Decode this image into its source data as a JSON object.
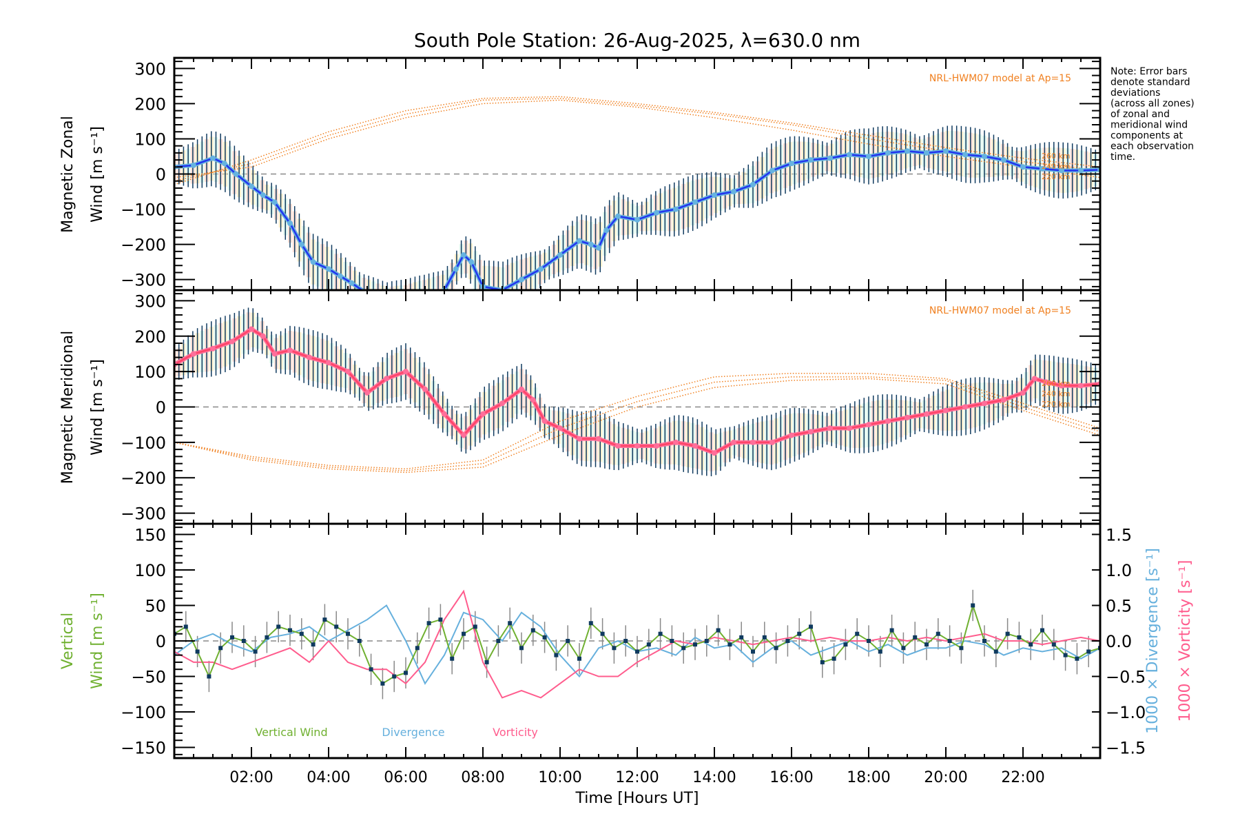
{
  "chart_data": [
    {
      "type": "line",
      "panel": "zonal",
      "title": "South Pole Station: 26-Aug-2025, λ=630.0 nm",
      "ylabel_line1": "Magnetic Zonal",
      "ylabel_line2": "Wind [m s⁻¹]",
      "ylim": [
        -330,
        330
      ],
      "yticks": [
        300,
        200,
        100,
        0,
        -100,
        -200,
        -300
      ],
      "model_label": "NRL-HWM07 model at Ap=15",
      "model_altitudes": [
        "260 km",
        "240 km",
        "220 km"
      ],
      "series": [
        {
          "name": "Magnetic Zonal Wind (mean)",
          "x": [
            0.0,
            0.5,
            1.0,
            1.3,
            1.6,
            2.0,
            2.3,
            2.6,
            3.0,
            3.3,
            3.6,
            4.0,
            4.3,
            4.6,
            5.0,
            5.5,
            6.0,
            6.5,
            7.0,
            7.3,
            7.5,
            7.7,
            8.0,
            8.5,
            9.0,
            9.5,
            10.0,
            10.5,
            10.8,
            11.0,
            11.2,
            11.5,
            12.0,
            12.5,
            13.0,
            13.5,
            14.0,
            14.5,
            15.0,
            15.5,
            16.0,
            16.5,
            17.0,
            17.5,
            18.0,
            18.5,
            19.0,
            19.5,
            20.0,
            20.5,
            21.0,
            21.5,
            22.0,
            22.5,
            23.0,
            23.5,
            24.0
          ],
          "y": [
            20,
            25,
            45,
            30,
            0,
            -35,
            -60,
            -80,
            -140,
            -200,
            -250,
            -270,
            -290,
            -310,
            -340,
            -380,
            -380,
            -360,
            -330,
            -270,
            -230,
            -250,
            -320,
            -330,
            -300,
            -270,
            -230,
            -190,
            -200,
            -210,
            -160,
            -120,
            -130,
            -110,
            -100,
            -80,
            -60,
            -50,
            -30,
            10,
            30,
            40,
            45,
            55,
            50,
            60,
            65,
            60,
            65,
            55,
            50,
            40,
            20,
            15,
            10,
            10,
            12
          ]
        },
        {
          "name": "NRL-HWM07 260 km",
          "x": [
            0,
            2,
            4,
            6,
            8,
            10,
            12,
            14,
            16,
            18,
            20,
            22,
            24
          ],
          "y": [
            -30,
            40,
            120,
            180,
            215,
            220,
            200,
            175,
            145,
            110,
            75,
            45,
            20
          ]
        },
        {
          "name": "NRL-HWM07 240 km",
          "x": [
            0,
            2,
            4,
            6,
            8,
            10,
            12,
            14,
            16,
            18,
            20,
            22,
            24
          ],
          "y": [
            -20,
            30,
            110,
            170,
            210,
            215,
            195,
            170,
            140,
            100,
            65,
            35,
            10
          ]
        },
        {
          "name": "NRL-HWM07 220 km",
          "x": [
            0,
            2,
            4,
            6,
            8,
            10,
            12,
            14,
            16,
            18,
            20,
            22,
            24
          ],
          "y": [
            -10,
            20,
            100,
            160,
            200,
            210,
            190,
            160,
            125,
            85,
            50,
            20,
            -10
          ]
        }
      ]
    },
    {
      "type": "line",
      "panel": "meridional",
      "ylabel_line1": "Magnetic Meridional",
      "ylabel_line2": "Wind [m s⁻¹]",
      "ylim": [
        -330,
        330
      ],
      "yticks": [
        300,
        200,
        100,
        0,
        -100,
        -200,
        -300
      ],
      "model_label": "NRL-HWM07 model at Ap=15",
      "model_altitudes": [
        "260 km",
        "240 km",
        "220 km"
      ],
      "series": [
        {
          "name": "Magnetic Meridional Wind (mean)",
          "x": [
            0.0,
            0.5,
            1.0,
            1.5,
            2.0,
            2.3,
            2.6,
            3.0,
            3.5,
            4.0,
            4.5,
            5.0,
            5.5,
            6.0,
            6.5,
            7.0,
            7.5,
            8.0,
            8.5,
            9.0,
            9.3,
            9.6,
            10.0,
            10.5,
            11.0,
            11.5,
            12.0,
            12.5,
            13.0,
            13.5,
            14.0,
            14.5,
            15.0,
            15.5,
            16.0,
            16.5,
            17.0,
            17.5,
            18.0,
            18.5,
            19.0,
            19.5,
            20.0,
            20.5,
            21.0,
            21.5,
            22.0,
            22.3,
            22.6,
            23.0,
            23.5,
            24.0
          ],
          "y": [
            120,
            150,
            165,
            185,
            220,
            200,
            150,
            160,
            140,
            125,
            100,
            40,
            80,
            100,
            50,
            -20,
            -80,
            -20,
            10,
            50,
            20,
            -40,
            -60,
            -90,
            -90,
            -110,
            -110,
            -110,
            -100,
            -110,
            -130,
            -100,
            -100,
            -100,
            -80,
            -70,
            -60,
            -60,
            -50,
            -40,
            -30,
            -20,
            -10,
            0,
            10,
            20,
            40,
            80,
            70,
            60,
            60,
            65
          ]
        },
        {
          "name": "NRL-HWM07 260 km",
          "x": [
            0,
            2,
            4,
            6,
            8,
            10,
            12,
            14,
            16,
            18,
            20,
            22,
            24
          ],
          "y": [
            -100,
            -140,
            -165,
            -175,
            -150,
            -40,
            30,
            85,
            95,
            95,
            80,
            10,
            -60
          ]
        },
        {
          "name": "NRL-HWM07 240 km",
          "x": [
            0,
            2,
            4,
            6,
            8,
            10,
            12,
            14,
            16,
            18,
            20,
            22,
            24
          ],
          "y": [
            -100,
            -145,
            -170,
            -180,
            -160,
            -60,
            15,
            70,
            85,
            85,
            75,
            0,
            -70
          ]
        },
        {
          "name": "NRL-HWM07 220 km",
          "x": [
            0,
            2,
            4,
            6,
            8,
            10,
            12,
            14,
            16,
            18,
            20,
            22,
            24
          ],
          "y": [
            -100,
            -150,
            -175,
            -185,
            -170,
            -80,
            0,
            55,
            75,
            80,
            65,
            -10,
            -80
          ]
        }
      ]
    },
    {
      "type": "line",
      "panel": "vertical",
      "ylabel_line1": "Vertical",
      "ylabel_line2": "Wind [m s⁻¹]",
      "ylim": [
        -165,
        165
      ],
      "yticks": [
        150,
        100,
        50,
        0,
        -50,
        -100,
        -150
      ],
      "y2label_div": "1000 × Divergence [s⁻¹]",
      "y2label_vor": "1000 × Vorticity [s⁻¹]",
      "y2lim": [
        -1.65,
        1.65
      ],
      "y2ticks": [
        "1.5",
        "1.0",
        "0.5",
        "0.0",
        "−0.5",
        "−1.0",
        "−1.5"
      ],
      "legend": [
        "Vertical Wind",
        "Divergence",
        "Vorticity"
      ],
      "xlabel": "Time [Hours UT]",
      "xticks": [
        "02:00",
        "04:00",
        "06:00",
        "08:00",
        "10:00",
        "12:00",
        "14:00",
        "16:00",
        "18:00",
        "20:00",
        "22:00"
      ],
      "xlim": [
        0,
        24
      ],
      "series": [
        {
          "name": "Vertical Wind",
          "x": [
            0,
            0.3,
            0.6,
            0.9,
            1.2,
            1.5,
            1.8,
            2.1,
            2.4,
            2.7,
            3.0,
            3.3,
            3.6,
            3.9,
            4.2,
            4.5,
            4.8,
            5.1,
            5.4,
            5.7,
            6.0,
            6.3,
            6.6,
            6.9,
            7.2,
            7.5,
            7.8,
            8.1,
            8.4,
            8.7,
            9.0,
            9.3,
            9.6,
            9.9,
            10.2,
            10.5,
            10.8,
            11.1,
            11.4,
            11.7,
            12.0,
            12.3,
            12.6,
            12.9,
            13.2,
            13.5,
            13.8,
            14.1,
            14.4,
            14.7,
            15.0,
            15.3,
            15.6,
            15.9,
            16.2,
            16.5,
            16.8,
            17.1,
            17.4,
            17.7,
            18.0,
            18.3,
            18.6,
            18.9,
            19.2,
            19.5,
            19.8,
            20.1,
            20.4,
            20.7,
            21.0,
            21.3,
            21.6,
            21.9,
            22.2,
            22.5,
            22.8,
            23.1,
            23.4,
            23.7,
            24
          ],
          "y": [
            10,
            20,
            -15,
            -50,
            -10,
            5,
            0,
            -15,
            5,
            20,
            15,
            10,
            -5,
            30,
            20,
            10,
            0,
            -40,
            -60,
            -50,
            -45,
            -10,
            25,
            30,
            -25,
            10,
            20,
            -30,
            0,
            25,
            -10,
            15,
            5,
            -20,
            0,
            -25,
            25,
            10,
            -10,
            0,
            -15,
            -5,
            10,
            0,
            -10,
            -5,
            0,
            15,
            -5,
            5,
            -15,
            5,
            -10,
            0,
            10,
            20,
            -30,
            -25,
            -5,
            10,
            0,
            -15,
            15,
            -10,
            5,
            -5,
            10,
            0,
            -10,
            50,
            0,
            -15,
            10,
            5,
            -5,
            15,
            -5,
            -20,
            -25,
            -15,
            -10
          ]
        },
        {
          "name": "Divergence (x1000, s^-1)",
          "x": [
            0,
            0.5,
            1.0,
            1.5,
            2.0,
            2.5,
            3.0,
            3.5,
            4.0,
            4.5,
            5.0,
            5.5,
            6.0,
            6.5,
            7.0,
            7.5,
            8.0,
            8.5,
            9.0,
            9.5,
            10.0,
            10.5,
            11.0,
            11.5,
            12.0,
            12.5,
            13.0,
            13.5,
            14.0,
            14.5,
            15.0,
            15.5,
            16.0,
            16.5,
            17.0,
            17.5,
            18.0,
            18.5,
            19.0,
            19.5,
            20.0,
            20.5,
            21.0,
            21.5,
            22.0,
            22.5,
            23.0,
            23.5,
            24
          ],
          "y": [
            -0.2,
            0.0,
            0.1,
            -0.05,
            -0.15,
            0.05,
            0.1,
            0.2,
            0.0,
            0.15,
            0.3,
            0.5,
            0.0,
            -0.6,
            -0.2,
            0.4,
            0.3,
            0.0,
            0.4,
            0.2,
            -0.2,
            -0.5,
            -0.1,
            0.0,
            -0.15,
            -0.1,
            -0.2,
            0.05,
            -0.1,
            -0.05,
            -0.3,
            -0.1,
            0.0,
            -0.2,
            -0.1,
            0.0,
            -0.15,
            -0.05,
            -0.2,
            -0.1,
            -0.1,
            0.0,
            -0.05,
            -0.2,
            -0.1,
            -0.15,
            -0.1,
            -0.25,
            -0.1
          ]
        },
        {
          "name": "Vorticity (x1000, s^-1)",
          "x": [
            0,
            0.5,
            1.0,
            1.5,
            2.0,
            2.5,
            3.0,
            3.5,
            4.0,
            4.5,
            5.0,
            5.5,
            6.0,
            6.5,
            7.0,
            7.5,
            8.0,
            8.5,
            9.0,
            9.5,
            10.0,
            10.5,
            11.0,
            11.5,
            12.0,
            12.5,
            13.0,
            13.5,
            14.0,
            14.5,
            15.0,
            15.5,
            16.0,
            16.5,
            17.0,
            17.5,
            18.0,
            18.5,
            19.0,
            19.5,
            20.0,
            20.5,
            21.0,
            21.5,
            22.0,
            22.5,
            23.0,
            23.5,
            24
          ],
          "y": [
            -0.15,
            -0.3,
            -0.3,
            -0.4,
            -0.3,
            -0.2,
            -0.1,
            -0.3,
            0.0,
            -0.3,
            -0.4,
            -0.4,
            -0.6,
            -0.3,
            0.3,
            0.7,
            -0.3,
            -0.8,
            -0.7,
            -0.8,
            -0.6,
            -0.4,
            -0.5,
            -0.5,
            -0.3,
            -0.15,
            0.0,
            -0.05,
            0.05,
            0.0,
            -0.05,
            0.0,
            0.05,
            0.0,
            0.05,
            0.0,
            0.0,
            0.05,
            0.0,
            0.05,
            0.0,
            0.05,
            0.1,
            0.0,
            0.0,
            -0.05,
            0.0,
            0.05,
            0.0
          ]
        }
      ]
    }
  ],
  "note": [
    "Note: Error bars",
    "denote standard",
    "deviations",
    "(across all zones)",
    "of zonal and",
    "meridional wind",
    "components at",
    "each observation",
    "time."
  ],
  "colors": {
    "zonal": "#2233ee",
    "zonal_light": "#66b3e0",
    "meridional": "#ff4466",
    "meridional_light": "#ff6f9a",
    "model": "#f08020",
    "vertical": "#6fb030",
    "divergence": "#66b0dd",
    "vorticity": "#ff5c8d",
    "errorbar": "#0f3a5f",
    "zero": "#888888"
  }
}
